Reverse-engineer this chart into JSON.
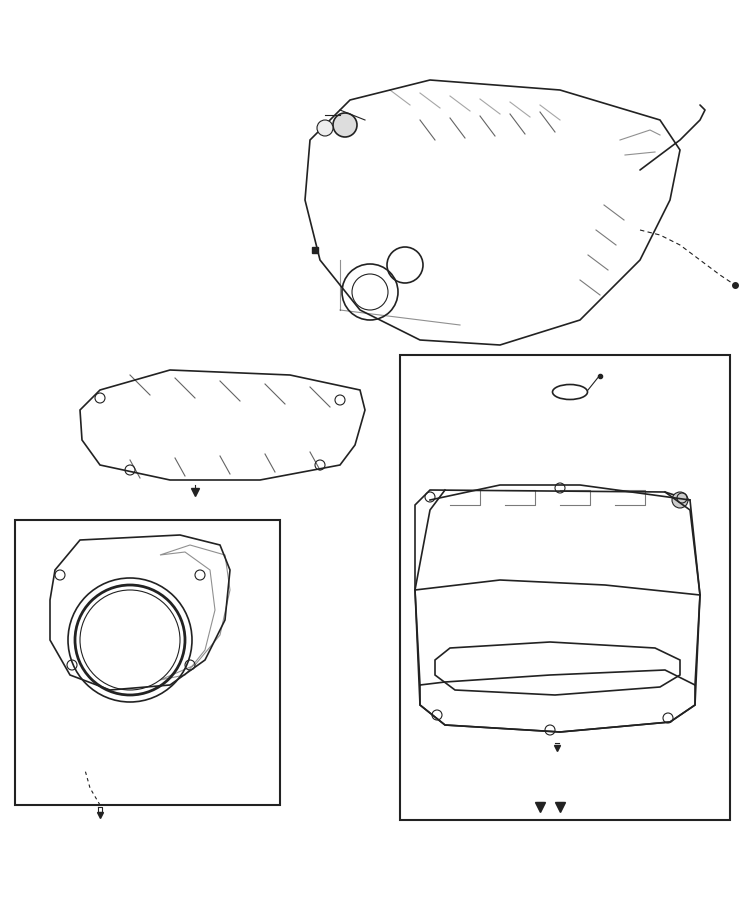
{
  "title": "",
  "background_color": "#ffffff",
  "line_color": "#222222",
  "fig_width": 7.41,
  "fig_height": 9.0,
  "dpi": 100
}
